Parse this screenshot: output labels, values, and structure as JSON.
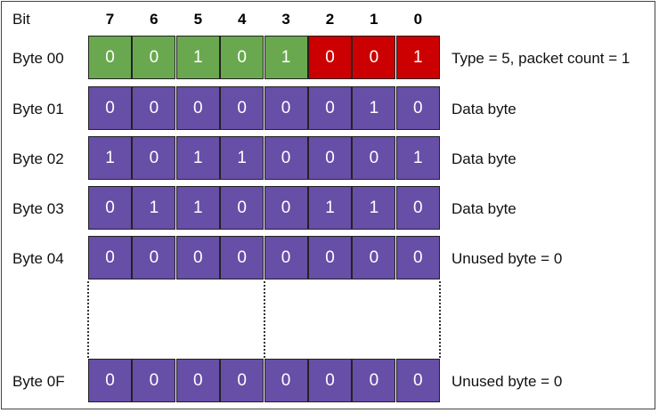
{
  "header": {
    "bit_label": "Bit",
    "bit_numbers": [
      "7",
      "6",
      "5",
      "4",
      "3",
      "2",
      "1",
      "0"
    ]
  },
  "colors": {
    "field_type": "#6aa84f",
    "field_count": "#cc0000",
    "data": "#674ea7"
  },
  "rows": [
    {
      "label": "Byte 00",
      "bits": [
        "0",
        "0",
        "1",
        "0",
        "1",
        "0",
        "0",
        "1"
      ],
      "description": "Type = 5, packet count = 1",
      "colors": [
        "green",
        "green",
        "green",
        "green",
        "green",
        "red",
        "red",
        "red"
      ]
    },
    {
      "label": "Byte 01",
      "bits": [
        "0",
        "0",
        "0",
        "0",
        "0",
        "0",
        "1",
        "0"
      ],
      "description": "Data byte",
      "colors": [
        "purple",
        "purple",
        "purple",
        "purple",
        "purple",
        "purple",
        "purple",
        "purple"
      ]
    },
    {
      "label": "Byte 02",
      "bits": [
        "1",
        "0",
        "1",
        "1",
        "0",
        "0",
        "0",
        "1"
      ],
      "description": "Data byte",
      "colors": [
        "purple",
        "purple",
        "purple",
        "purple",
        "purple",
        "purple",
        "purple",
        "purple"
      ]
    },
    {
      "label": "Byte 03",
      "bits": [
        "0",
        "1",
        "1",
        "0",
        "0",
        "1",
        "1",
        "0"
      ],
      "description": "Data byte",
      "colors": [
        "purple",
        "purple",
        "purple",
        "purple",
        "purple",
        "purple",
        "purple",
        "purple"
      ]
    },
    {
      "label": "Byte 04",
      "bits": [
        "0",
        "0",
        "0",
        "0",
        "0",
        "0",
        "0",
        "0"
      ],
      "description": "Unused byte = 0",
      "colors": [
        "purple",
        "purple",
        "purple",
        "purple",
        "purple",
        "purple",
        "purple",
        "purple"
      ]
    },
    {
      "label": "Byte 0F",
      "bits": [
        "0",
        "0",
        "0",
        "0",
        "0",
        "0",
        "0",
        "0"
      ],
      "description": "Unused byte = 0",
      "colors": [
        "purple",
        "purple",
        "purple",
        "purple",
        "purple",
        "purple",
        "purple",
        "purple"
      ]
    }
  ]
}
